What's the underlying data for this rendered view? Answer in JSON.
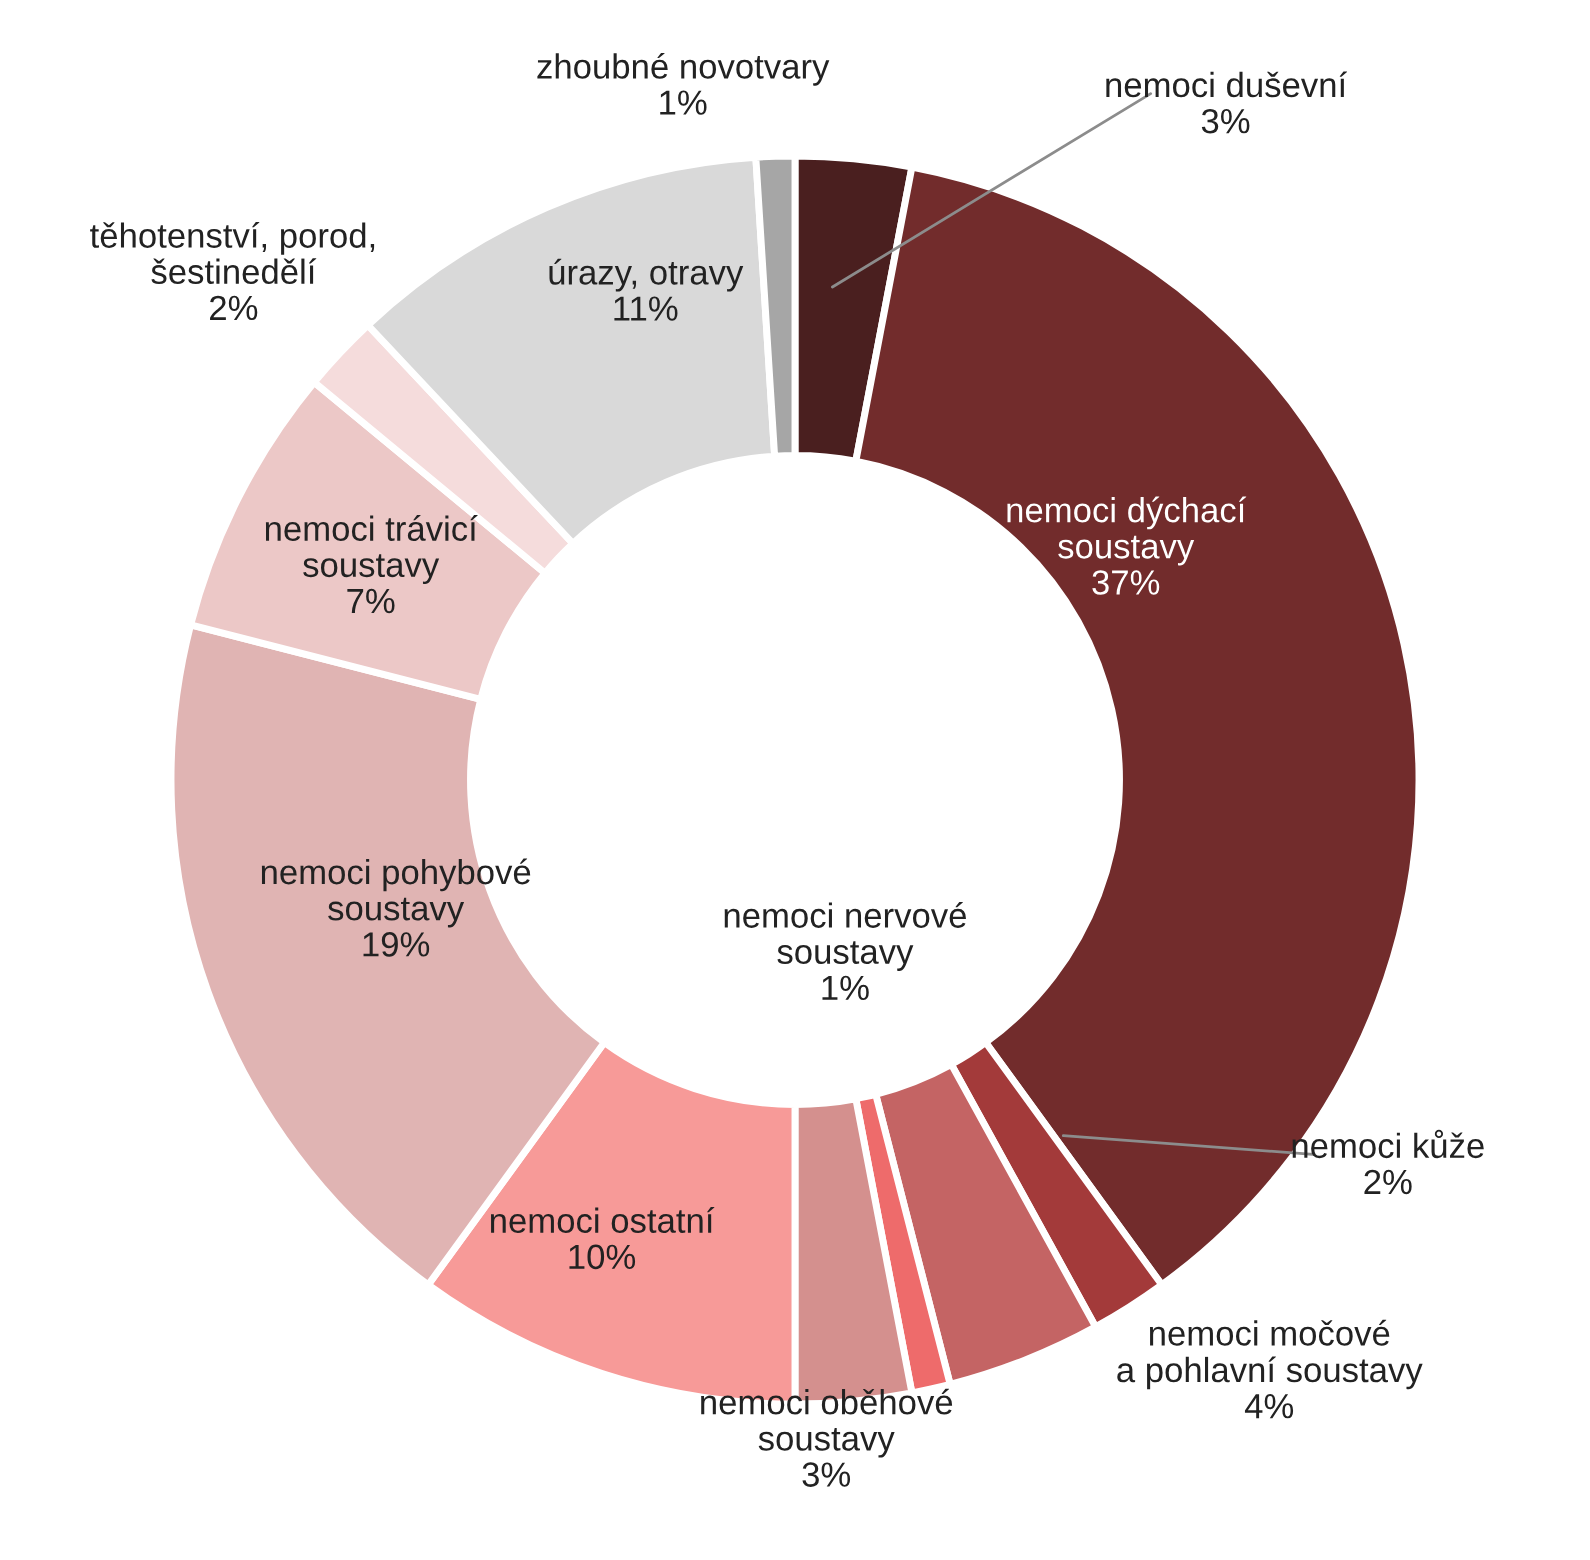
{
  "chart_data": {
    "type": "donut",
    "categories": [
      "nemoci duševní",
      "nemoci dýchací\nsoustavy",
      "nemoci kůže",
      "nemoci močové\na pohlavní soustavy",
      "nemoci nervové\nsoustavy",
      "nemoci oběhové\nsoustavy",
      "nemoci ostatní",
      "nemoci pohybové\nsoustavy",
      "nemoci trávicí\nsoustavy",
      "těhotenství, porod,\nšestinedělí",
      "úrazy, otravy",
      "zhoubné novotvary"
    ],
    "values": [
      3,
      37,
      2,
      4,
      1,
      3,
      10,
      19,
      7,
      2,
      11,
      1
    ],
    "value_labels": [
      "3%",
      "37%",
      "2%",
      "4%",
      "1%",
      "3%",
      "10%",
      "19%",
      "7%",
      "2%",
      "11%",
      "1%"
    ],
    "colors": [
      "#4a1f1f",
      "#722c2c",
      "#a33a3a",
      "#c46464",
      "#ee6b6b",
      "#d4908e",
      "#f79a98",
      "#e0b4b3",
      "#ecc8c7",
      "#f5dcdc",
      "#d9d9d9",
      "#a6a6a6"
    ]
  }
}
